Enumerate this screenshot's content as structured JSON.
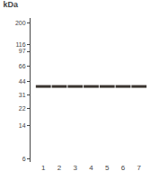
{
  "chart_data": {
    "type": "scatter",
    "title": "kDa",
    "categories": [
      "1",
      "2",
      "3",
      "4",
      "5",
      "6",
      "7"
    ],
    "values": [
      39,
      39,
      39,
      39,
      39,
      39,
      39
    ],
    "color": "#3a3530",
    "marker": "band",
    "log": "y",
    "ylim": [
      5.5,
      230
    ],
    "yticks": [
      200,
      116,
      97,
      66,
      44,
      31,
      22,
      14,
      6
    ],
    "grid": false
  }
}
